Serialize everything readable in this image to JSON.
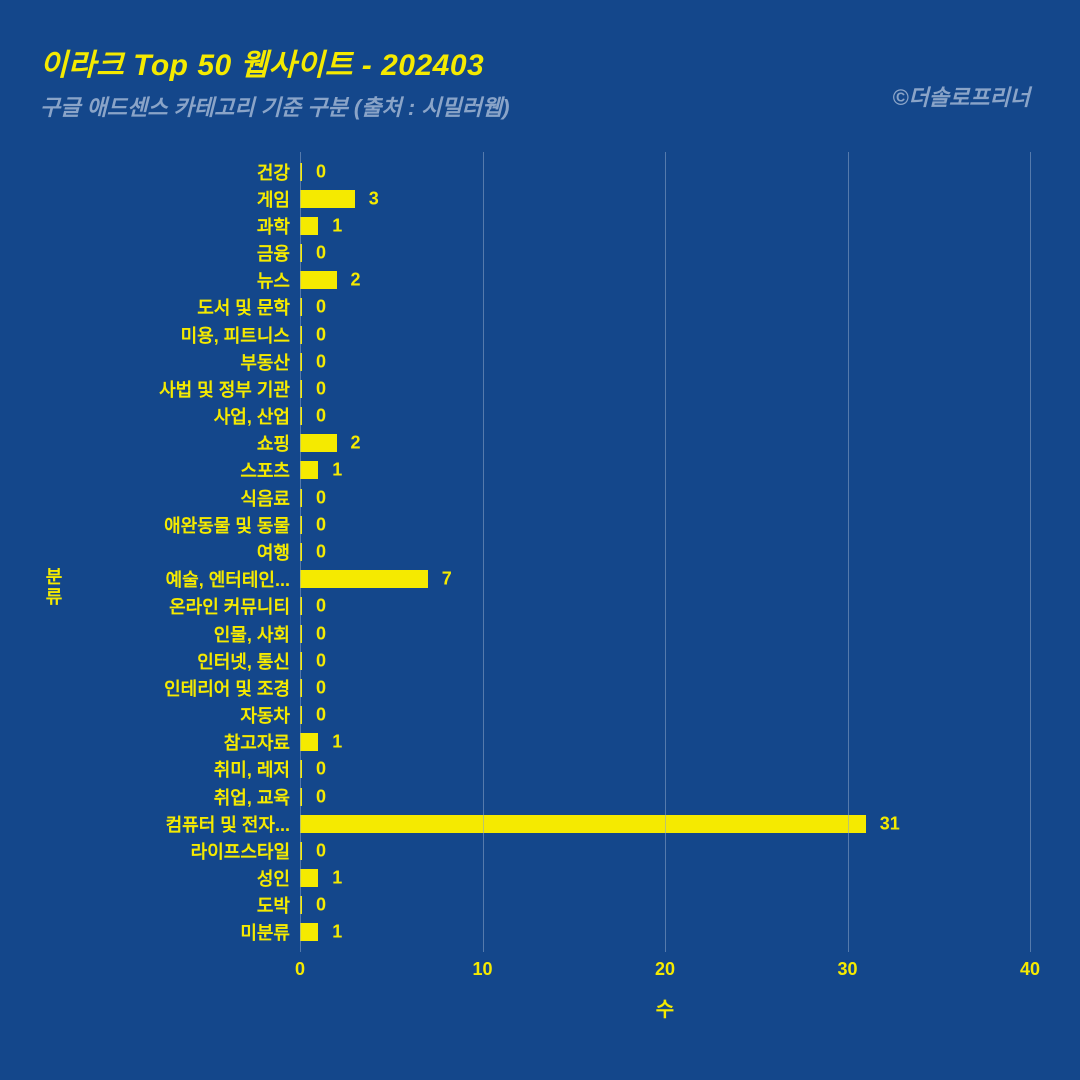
{
  "title": "이라크 Top 50 웹사이트 - 202403",
  "subtitle": "구글 애드센스 카테고리 기준 구분 (출처 : 시밀러웹)",
  "credit": "©더솔로프리너",
  "chart": {
    "type": "bar-horizontal",
    "background_color": "#14478b",
    "bar_color": "#f5ea00",
    "text_color": "#f5ea00",
    "grid_color": "#8aa4c8",
    "subtitle_color": "#8aa4c8",
    "title_fontsize": 30,
    "subtitle_fontsize": 22,
    "label_fontsize": 18,
    "y_axis_title": "분류",
    "x_axis_title": "수",
    "xlim": [
      0,
      40
    ],
    "xtick_step": 10,
    "xticks": [
      0,
      10,
      20,
      30,
      40
    ],
    "categories": [
      {
        "label": "건강",
        "value": 0
      },
      {
        "label": "게임",
        "value": 3
      },
      {
        "label": "과학",
        "value": 1
      },
      {
        "label": "금융",
        "value": 0
      },
      {
        "label": "뉴스",
        "value": 2
      },
      {
        "label": "도서 및 문학",
        "value": 0
      },
      {
        "label": "미용, 피트니스",
        "value": 0
      },
      {
        "label": "부동산",
        "value": 0
      },
      {
        "label": "사법 및 정부 기관",
        "value": 0
      },
      {
        "label": "사업, 산업",
        "value": 0
      },
      {
        "label": "쇼핑",
        "value": 2
      },
      {
        "label": "스포츠",
        "value": 1
      },
      {
        "label": "식음료",
        "value": 0
      },
      {
        "label": "애완동물 및 동물",
        "value": 0
      },
      {
        "label": "여행",
        "value": 0
      },
      {
        "label": "예술, 엔터테인...",
        "value": 7
      },
      {
        "label": "온라인 커뮤니티",
        "value": 0
      },
      {
        "label": "인물, 사회",
        "value": 0
      },
      {
        "label": "인터넷, 통신",
        "value": 0
      },
      {
        "label": "인테리어 및 조경",
        "value": 0
      },
      {
        "label": "자동차",
        "value": 0
      },
      {
        "label": "참고자료",
        "value": 1
      },
      {
        "label": "취미, 레저",
        "value": 0
      },
      {
        "label": "취업, 교육",
        "value": 0
      },
      {
        "label": "컴퓨터 및 전자...",
        "value": 31
      },
      {
        "label": "라이프스타일",
        "value": 0
      },
      {
        "label": "성인",
        "value": 1
      },
      {
        "label": "도박",
        "value": 0
      },
      {
        "label": "미분류",
        "value": 1
      }
    ]
  }
}
